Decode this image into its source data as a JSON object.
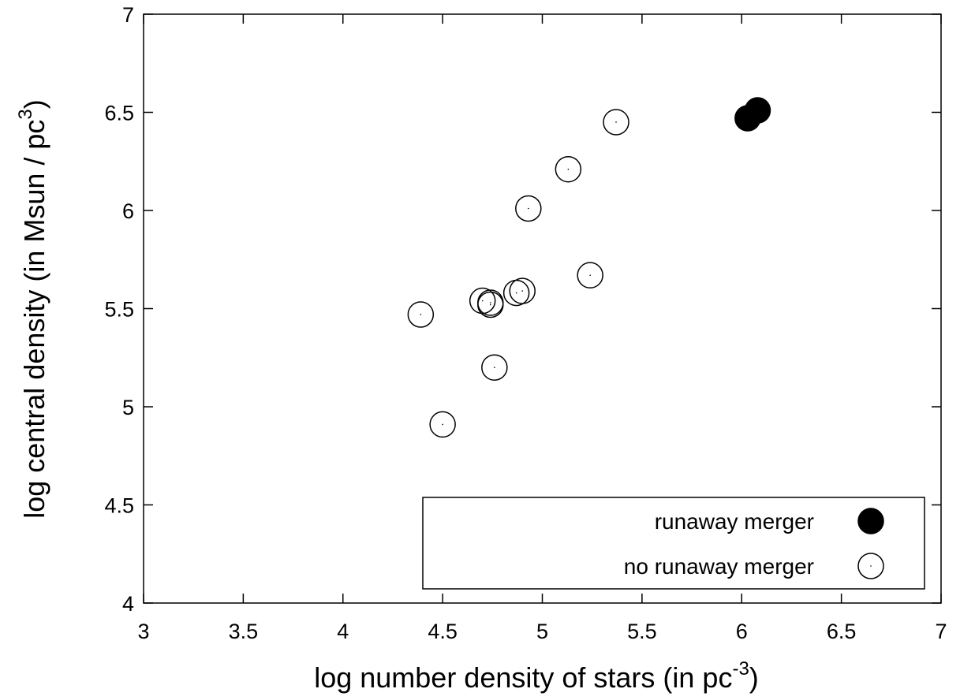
{
  "chart_data": {
    "type": "scatter",
    "xlabel": "log number density of stars (in pc",
    "xlabel_sup": "-3",
    "xlabel_end": ")",
    "ylabel": "log central density (in Msun / pc",
    "ylabel_sup": "3",
    "ylabel_end": ")",
    "xlim": [
      3,
      7
    ],
    "ylim": [
      4,
      7
    ],
    "x_ticks": [
      "3",
      "3.5",
      "4",
      "4.5",
      "5",
      "5.5",
      "6",
      "6.5",
      "7"
    ],
    "y_ticks": [
      "4",
      "4.5",
      "5",
      "5.5",
      "6",
      "6.5",
      "7"
    ],
    "grid": false,
    "legend_position": "bottom-right",
    "series": [
      {
        "name": "runaway merger",
        "marker": "filled-circle",
        "color": "#000000",
        "points": [
          {
            "x": 6.03,
            "y": 6.47
          },
          {
            "x": 6.08,
            "y": 6.51
          }
        ]
      },
      {
        "name": "no runaway merger",
        "marker": "open-circle",
        "color": "#000000",
        "points": [
          {
            "x": 5.37,
            "y": 6.45
          },
          {
            "x": 5.13,
            "y": 6.21
          },
          {
            "x": 4.93,
            "y": 6.01
          },
          {
            "x": 5.24,
            "y": 5.67
          },
          {
            "x": 4.9,
            "y": 5.59
          },
          {
            "x": 4.87,
            "y": 5.58
          },
          {
            "x": 4.7,
            "y": 5.54
          },
          {
            "x": 4.74,
            "y": 5.53
          },
          {
            "x": 4.74,
            "y": 5.52
          },
          {
            "x": 4.39,
            "y": 5.47
          },
          {
            "x": 4.76,
            "y": 5.2
          },
          {
            "x": 4.5,
            "y": 4.91
          }
        ]
      }
    ]
  }
}
